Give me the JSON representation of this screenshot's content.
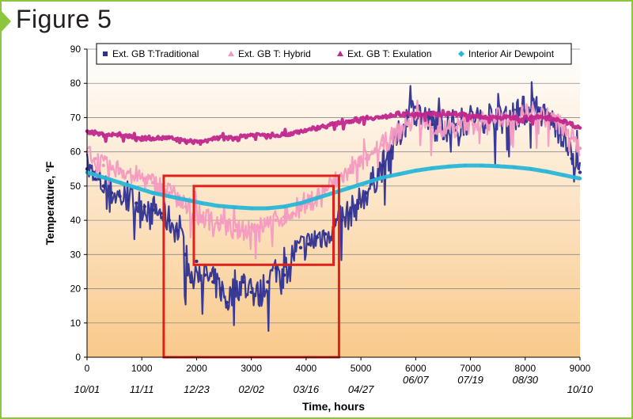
{
  "figure_label": "Figure 5",
  "colors": {
    "frame": "#8cc63f",
    "traditional": "#2e3192",
    "hybrid": "#f49ac1",
    "exulation": "#c1278c",
    "dewpoint": "#29b6d8",
    "highlight_box": "#e0201b",
    "plot_bg_top": "#ffffff",
    "plot_bg_bottom": "#f9c98a"
  },
  "chart_data": {
    "type": "line",
    "xlabel": "Time, hours",
    "ylabel": "Temperature, °F",
    "xlim": [
      0,
      9000
    ],
    "ylim": [
      0,
      90
    ],
    "x_ticks": [
      0,
      1000,
      2000,
      3000,
      4000,
      5000,
      6000,
      7000,
      8000,
      9000
    ],
    "y_ticks": [
      0,
      10,
      20,
      30,
      40,
      50,
      60,
      70,
      80,
      90
    ],
    "date_labels": [
      {
        "x": 0,
        "label": "10/01"
      },
      {
        "x": 1000,
        "label": "11/11"
      },
      {
        "x": 2000,
        "label": "12/23"
      },
      {
        "x": 3000,
        "label": "02/02"
      },
      {
        "x": 4000,
        "label": "03/16"
      },
      {
        "x": 5000,
        "label": "04/27"
      },
      {
        "x": 6000,
        "label": "06/07"
      },
      {
        "x": 7000,
        "label": "07/19"
      },
      {
        "x": 8000,
        "label": "08/30"
      },
      {
        "x": 9000,
        "label": "10/10"
      }
    ],
    "grid": "horizontal",
    "legend_position": "top",
    "series": [
      {
        "name": "Ext. GB T:Traditional",
        "marker": "square",
        "color_key": "traditional",
        "x": [
          0,
          150,
          300,
          450,
          600,
          750,
          900,
          1050,
          1200,
          1350,
          1500,
          1650,
          1800,
          1900,
          2000,
          2150,
          2300,
          2450,
          2550,
          2700,
          2850,
          3000,
          3150,
          3300,
          3450,
          3600,
          3750,
          3900,
          4050,
          4200,
          4350,
          4500,
          4650,
          4800,
          4950,
          5100,
          5250,
          5400,
          5550,
          5700,
          5850,
          6000,
          6150,
          6300,
          6450,
          6600,
          6750,
          6900,
          7050,
          7200,
          7350,
          7500,
          7650,
          7800,
          7950,
          8100,
          8250,
          8400,
          8550,
          8700,
          8850,
          9000
        ],
        "y": [
          55,
          52,
          50,
          48,
          47,
          46,
          45,
          44,
          43,
          42,
          40,
          37,
          30,
          22,
          28,
          24,
          22,
          20,
          16,
          20,
          22,
          19,
          18,
          22,
          26,
          24,
          30,
          32,
          33,
          35,
          36,
          38,
          40,
          42,
          45,
          48,
          52,
          56,
          60,
          65,
          70,
          73,
          70,
          68,
          67,
          68,
          68,
          69,
          70,
          70,
          70,
          71,
          70,
          71,
          72,
          72,
          72,
          70,
          68,
          65,
          58,
          54
        ]
      },
      {
        "name": "Ext. GB T: Hybrid",
        "marker": "triangle",
        "color_key": "hybrid",
        "x": [
          0,
          150,
          300,
          450,
          600,
          750,
          900,
          1050,
          1200,
          1350,
          1500,
          1650,
          1800,
          1950,
          2100,
          2250,
          2400,
          2550,
          2700,
          2850,
          3000,
          3150,
          3300,
          3450,
          3600,
          3750,
          3900,
          4050,
          4200,
          4350,
          4500,
          4650,
          4800,
          4950,
          5100,
          5250,
          5400,
          5550,
          5700,
          5850,
          6000,
          6150,
          6300,
          6450,
          6600,
          6750,
          6900,
          7050,
          7200,
          7350,
          7500,
          7650,
          7800,
          7950,
          8100,
          8250,
          8400,
          8550,
          8700,
          8850,
          9000
        ],
        "y": [
          60,
          58,
          56,
          55,
          55,
          54,
          53,
          52,
          51,
          50,
          48,
          46,
          44,
          42,
          41,
          40,
          39,
          38,
          37,
          37,
          38,
          38,
          39,
          40,
          41,
          42,
          43,
          45,
          47,
          49,
          51,
          53,
          54,
          56,
          58,
          60,
          62,
          64,
          66,
          68,
          70,
          69,
          67,
          66,
          67,
          67,
          68,
          68,
          69,
          69,
          70,
          70,
          70,
          71,
          71,
          71,
          70,
          69,
          67,
          64,
          61
        ]
      },
      {
        "name": "Ext. GB T: Exulation",
        "marker": "triangle",
        "color_key": "exulation",
        "x": [
          0,
          300,
          600,
          900,
          1200,
          1500,
          1800,
          2100,
          2400,
          2700,
          3000,
          3300,
          3600,
          3900,
          4200,
          4500,
          4800,
          5100,
          5400,
          5700,
          6000,
          6300,
          6600,
          6900,
          7200,
          7500,
          7800,
          8100,
          8400,
          8700,
          9000
        ],
        "y": [
          66,
          65,
          65,
          64,
          64,
          64,
          63,
          63,
          64,
          64,
          65,
          65,
          65,
          66,
          67,
          68,
          69,
          70,
          70,
          71,
          71,
          71,
          71,
          71,
          70,
          70,
          70,
          70,
          70,
          69,
          67
        ]
      },
      {
        "name": "Interior Air Dewpoint",
        "marker": "diamond",
        "color_key": "dewpoint",
        "x": [
          0,
          300,
          600,
          900,
          1200,
          1500,
          1800,
          2100,
          2400,
          2700,
          3000,
          3300,
          3600,
          3900,
          4200,
          4500,
          4800,
          5100,
          5400,
          5700,
          6000,
          6300,
          6600,
          6900,
          7200,
          7500,
          7800,
          8100,
          8400,
          8700,
          9000
        ],
        "y": [
          54,
          52.5,
          51,
          49.5,
          48,
          47,
          46,
          45,
          44.2,
          43.8,
          43.5,
          43.5,
          44,
          45,
          46.5,
          48,
          49.5,
          51,
          52.5,
          53.5,
          54.5,
          55.2,
          55.7,
          56,
          56,
          55.8,
          55.5,
          55,
          54.2,
          53.2,
          52.2
        ]
      }
    ],
    "highlight_boxes": [
      {
        "x0": 1400,
        "x1": 4600,
        "y0": 0,
        "y1": 53
      },
      {
        "x0": 1950,
        "x1": 4500,
        "y0": 27,
        "y1": 50
      }
    ]
  }
}
